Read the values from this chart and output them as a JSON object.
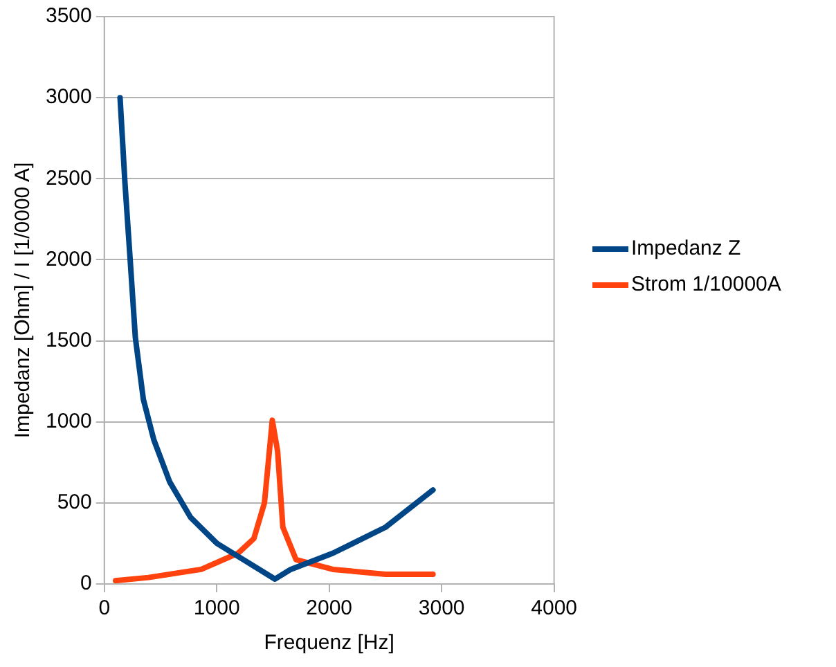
{
  "chart_data": {
    "type": "line",
    "xlabel": "Frequenz [Hz]",
    "ylabel": "Impedanz [Ohm] / I [1/0000 A]",
    "xlim": [
      0,
      4000
    ],
    "xticks": [
      0,
      1000,
      2000,
      3000,
      4000
    ],
    "ylim": [
      0,
      3500
    ],
    "yticks": [
      0,
      500,
      1000,
      1500,
      2000,
      2500,
      3000,
      3500
    ],
    "grid": "y",
    "legend": "right",
    "marker": "none",
    "line_style": "solid",
    "series": [
      {
        "name": "Impedanz Z",
        "color": "#004586",
        "x": [
          140,
          183,
          230,
          276,
          347,
          440,
          581,
          768,
          1002,
          1237,
          1518,
          1658,
          2033,
          2501,
          2923
        ],
        "values": [
          3000,
          2480,
          2000,
          1520,
          1140,
          890,
          630,
          410,
          250,
          150,
          30,
          90,
          190,
          350,
          580
        ]
      },
      {
        "name": "Strom 1/10000A",
        "color": "#ff420e",
        "x": [
          100,
          393,
          862,
          1190,
          1330,
          1424,
          1494,
          1541,
          1588,
          1705,
          2033,
          2501,
          2923
        ],
        "values": [
          20,
          40,
          90,
          190,
          280,
          500,
          1010,
          820,
          350,
          150,
          90,
          60,
          60
        ]
      }
    ]
  }
}
